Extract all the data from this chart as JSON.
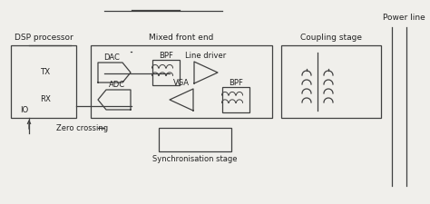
{
  "bg_color": "#f0efeb",
  "line_color": "#404040",
  "text_color": "#222222",
  "labels": {
    "dsp": "DSP processor",
    "mixed": "Mixed front end",
    "coupling": "Coupling stage",
    "powerline": "Power line",
    "tx": "TX",
    "rx": "RX",
    "io": "IO",
    "dac": "DAC",
    "adc": "ADC",
    "bpf1": "BPF",
    "bpf2": "BPF",
    "vga": "VGA",
    "linedriver": "Line driver",
    "zerocrossing": "Zero crossing",
    "sync": "Synchronisation stage"
  }
}
